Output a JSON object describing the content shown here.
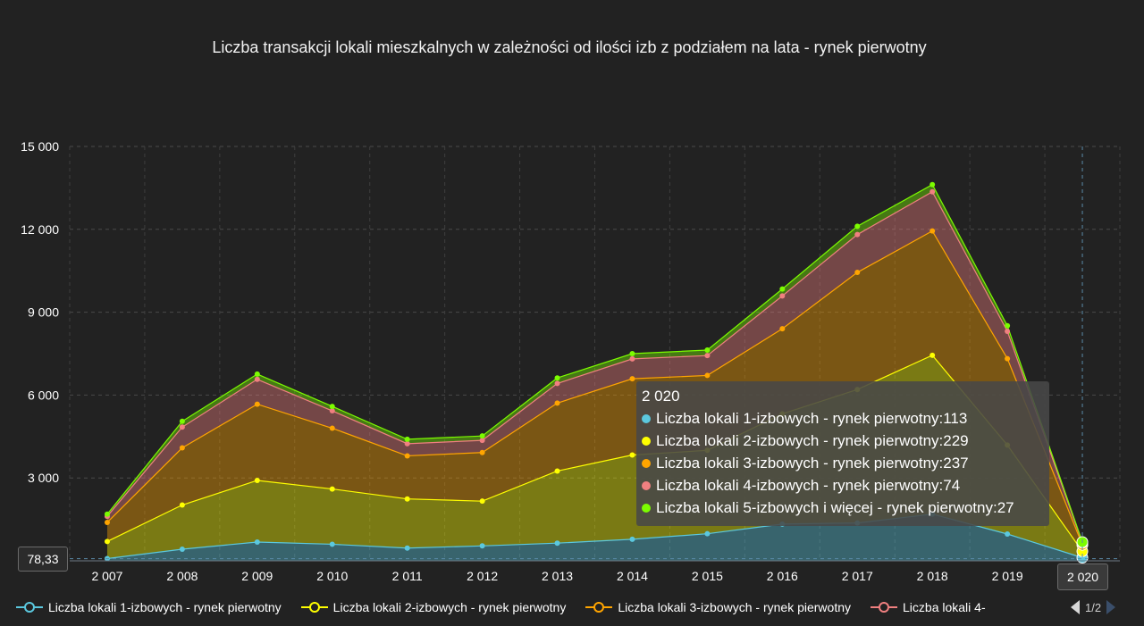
{
  "chart_data": {
    "type": "area",
    "stacked": true,
    "title": "Liczba transakcji lokali mieszkalnych w zależności od ilości izb z podziałem na lata - rynek pierwotny",
    "categories": [
      "2 007",
      "2 008",
      "2 009",
      "2 010",
      "2 011",
      "2 012",
      "2 013",
      "2 014",
      "2 015",
      "2 016",
      "2 017",
      "2 018",
      "2 019",
      "2 020"
    ],
    "ylim": [
      0,
      15000
    ],
    "yticks": [
      3000,
      6000,
      9000,
      12000,
      15000
    ],
    "ytick_labels": [
      "3 000",
      "6 000",
      "9 000",
      "12 000",
      "15 000"
    ],
    "grid": true,
    "legend_position": "bottom",
    "series": [
      {
        "name": "Liczba lokali 1-izbowych - rynek pierwotny",
        "color": "#5bc8de",
        "values": [
          80,
          420,
          680,
          600,
          460,
          540,
          640,
          780,
          980,
          1330,
          1370,
          1690,
          970,
          113
        ]
      },
      {
        "name": "Liczba lokali 2-izbowych - rynek pierwotny",
        "color": "#ffff00",
        "values": [
          620,
          1600,
          2230,
          2000,
          1780,
          1620,
          2610,
          3050,
          3020,
          3990,
          4830,
          5750,
          3220,
          229
        ]
      },
      {
        "name": "Liczba lokali 3-izbowych - rynek pierwotny",
        "color": "#ffa500",
        "values": [
          690,
          2070,
          2760,
          2200,
          1560,
          1760,
          2460,
          2760,
          2710,
          3080,
          4240,
          4500,
          3130,
          237
        ]
      },
      {
        "name": "Liczba lokali 4-izbowych - rynek pierwotny",
        "color": "#f08080",
        "values": [
          220,
          750,
          900,
          630,
          440,
          440,
          710,
          720,
          720,
          1190,
          1370,
          1420,
          990,
          74
        ]
      },
      {
        "name": "Liczba lokali 5-izbowych i więcej - rynek pierwotny",
        "color": "#7cfc00",
        "values": [
          80,
          210,
          190,
          160,
          160,
          160,
          200,
          190,
          200,
          250,
          300,
          260,
          200,
          27
        ]
      }
    ]
  },
  "tooltip": {
    "header": "2 020",
    "rows": [
      {
        "text": "Liczba lokali 1-izbowych - rynek pierwotny:113",
        "color": "#5bc8de"
      },
      {
        "text": "Liczba lokali 2-izbowych - rynek pierwotny:229",
        "color": "#ffff00"
      },
      {
        "text": "Liczba lokali 3-izbowych - rynek pierwotny:237",
        "color": "#ffa500"
      },
      {
        "text": "Liczba lokali 4-izbowych - rynek pierwotny:74",
        "color": "#f08080"
      },
      {
        "text": "Liczba lokali 5-izbowych i więcej - rynek pierwotny:27",
        "color": "#7cfc00"
      }
    ]
  },
  "crosshair": {
    "y_value": "78,33",
    "x_value": "2 020"
  },
  "legend": {
    "items": [
      {
        "label": "Liczba lokali 1-izbowych - rynek pierwotny",
        "color": "#5bc8de"
      },
      {
        "label": "Liczba lokali 2-izbowych - rynek pierwotny",
        "color": "#ffff00"
      },
      {
        "label": "Liczba lokali 3-izbowych - rynek pierwotny",
        "color": "#ffa500"
      },
      {
        "label": "Liczba lokali 4-",
        "color": "#f08080"
      }
    ],
    "page": "1/2"
  }
}
